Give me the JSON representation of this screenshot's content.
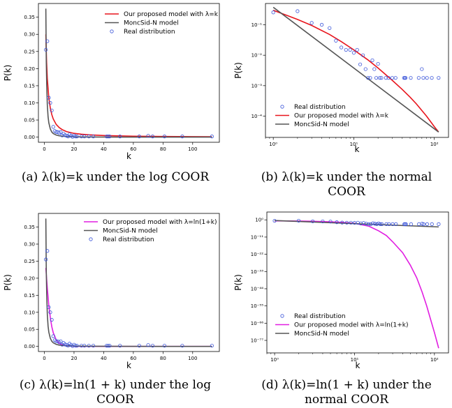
{
  "chart_data": [
    {
      "id": "a",
      "type": "line",
      "caption": "(a) λ(k)=k under the log COOR",
      "xlabel": "k",
      "ylabel": "P(k)",
      "xlim": [
        -4,
        118
      ],
      "ylim": [
        -0.015,
        0.39
      ],
      "xscale": "linear",
      "yscale": "linear",
      "xticks": [
        0,
        20,
        40,
        60,
        80,
        100
      ],
      "xtick_labels": [
        "0",
        "20",
        "40",
        "60",
        "80",
        "100"
      ],
      "yticks": [
        0.0,
        0.05,
        0.1,
        0.15,
        0.2,
        0.25,
        0.3,
        0.35
      ],
      "ytick_labels": [
        "0.00",
        "0.05",
        "0.10",
        "0.15",
        "0.20",
        "0.25",
        "0.30",
        "0.35"
      ],
      "legend_position": "top-right",
      "series": [
        {
          "name": "Our proposed model with λ=k",
          "kind": "line",
          "color": "#e8141c",
          "width": 1.6,
          "x": [
            1,
            1.5,
            2,
            3,
            4,
            5,
            6,
            8,
            10,
            12,
            15,
            20,
            25,
            30,
            40,
            50,
            60,
            80,
            100,
            113
          ],
          "y": [
            0.3,
            0.22,
            0.17,
            0.115,
            0.085,
            0.066,
            0.053,
            0.037,
            0.028,
            0.022,
            0.016,
            0.011,
            0.0085,
            0.0068,
            0.0048,
            0.0036,
            0.0028,
            0.0019,
            0.0014,
            0.0012
          ]
        },
        {
          "name": "MoncSid-N model",
          "kind": "line",
          "color": "#555555",
          "width": 1.6,
          "x": [
            1,
            1.3,
            1.6,
            2,
            2.5,
            3,
            4,
            5,
            6,
            8,
            10,
            15,
            20,
            30,
            50,
            80,
            113
          ],
          "y": [
            0.375,
            0.22,
            0.15,
            0.094,
            0.06,
            0.042,
            0.024,
            0.015,
            0.0105,
            0.006,
            0.0038,
            0.0017,
            0.0009,
            0.0004,
            0.00015,
            6e-05,
            3e-05
          ]
        },
        {
          "name": "Real distribution",
          "kind": "scatter",
          "color": "#3b55d9",
          "x": [
            1,
            2,
            3,
            4,
            5,
            6,
            7,
            8,
            9,
            10,
            11,
            12,
            13,
            14,
            15,
            16,
            17,
            18,
            19,
            20,
            21,
            22,
            25,
            27,
            30,
            33,
            42,
            43,
            44,
            51,
            64,
            70,
            73,
            81,
            93,
            113
          ],
          "y": [
            0.255,
            0.28,
            0.115,
            0.1,
            0.078,
            0.03,
            0.018,
            0.015,
            0.015,
            0.012,
            0.015,
            0.005,
            0.01,
            0.006,
            0.004,
            0.002,
            0.008,
            0.004,
            0.001,
            0.005,
            0.002,
            0.002,
            0.002,
            0.002,
            0.002,
            0.002,
            0.002,
            0.002,
            0.002,
            0.002,
            0.002,
            0.004,
            0.002,
            0.002,
            0.002,
            0.002
          ]
        }
      ]
    },
    {
      "id": "b",
      "type": "line",
      "caption": "(b) λ(k)=k under the normal COOR",
      "xlabel": "k",
      "ylabel": "P(k)",
      "xlim": [
        0.8,
        150
      ],
      "ylim": [
        2e-05,
        0.5
      ],
      "xscale": "log",
      "yscale": "log",
      "xticks": [
        1,
        10,
        100
      ],
      "xtick_labels": [
        "10⁰",
        "10¹",
        "10²"
      ],
      "yticks": [
        0.0001,
        0.001,
        0.01,
        0.1
      ],
      "ytick_labels": [
        "10⁻⁴",
        "10⁻³",
        "10⁻²",
        "10⁻¹"
      ],
      "legend_position": "bottom-left",
      "series": [
        {
          "name": "Real distribution",
          "kind": "scatter",
          "color": "#3b55d9",
          "x": [
            1,
            2,
            3,
            4,
            5,
            6,
            7,
            8,
            9,
            10,
            11,
            12,
            13,
            14,
            15,
            16,
            17,
            18,
            19,
            20,
            21,
            22,
            25,
            27,
            30,
            33,
            42,
            43,
            44,
            51,
            64,
            70,
            73,
            81,
            93,
            113
          ],
          "y": [
            0.255,
            0.28,
            0.115,
            0.1,
            0.078,
            0.03,
            0.018,
            0.015,
            0.015,
            0.012,
            0.015,
            0.005,
            0.01,
            0.0035,
            0.0018,
            0.0018,
            0.0068,
            0.0035,
            0.0018,
            0.0052,
            0.0018,
            0.0018,
            0.0018,
            0.0018,
            0.0018,
            0.0018,
            0.0018,
            0.0018,
            0.0018,
            0.0018,
            0.0018,
            0.0035,
            0.0018,
            0.0018,
            0.0018,
            0.0018
          ]
        },
        {
          "name": "Our proposed model with λ=k",
          "kind": "line",
          "color": "#e8141c",
          "width": 1.6,
          "x": [
            1,
            1.5,
            2,
            3,
            5,
            7,
            10,
            15,
            20,
            30,
            40,
            50,
            60,
            80,
            100,
            113
          ],
          "y": [
            0.3,
            0.2,
            0.15,
            0.095,
            0.048,
            0.028,
            0.015,
            0.007,
            0.0038,
            0.0015,
            0.00075,
            0.00042,
            0.00025,
            0.0001,
            4.5e-05,
            3e-05
          ]
        },
        {
          "name": "MoncSid-N model",
          "kind": "line",
          "color": "#555555",
          "width": 1.6,
          "x": [
            1,
            113
          ],
          "y": [
            0.375,
            3e-05
          ]
        }
      ]
    },
    {
      "id": "c",
      "type": "line",
      "caption": "(c) λ(k)=ln(1 + k) under the log COOR",
      "xlabel": "k",
      "ylabel": "P(k)",
      "xlim": [
        -4,
        118
      ],
      "ylim": [
        -0.015,
        0.39
      ],
      "xscale": "linear",
      "yscale": "linear",
      "xticks": [
        0,
        20,
        40,
        60,
        80,
        100
      ],
      "xtick_labels": [
        "0",
        "20",
        "40",
        "60",
        "80",
        "100"
      ],
      "yticks": [
        0.0,
        0.05,
        0.1,
        0.15,
        0.2,
        0.25,
        0.3,
        0.35
      ],
      "ytick_labels": [
        "0.00",
        "0.05",
        "0.10",
        "0.15",
        "0.20",
        "0.25",
        "0.30",
        "0.35"
      ],
      "legend_position": "top-right",
      "series": [
        {
          "name": "Our proposed model with λ=ln(1+k)",
          "kind": "line",
          "color": "#e11ee1",
          "width": 1.6,
          "x": [
            1,
            1.5,
            2,
            3,
            4,
            5,
            6,
            8,
            10,
            12,
            15,
            20,
            25,
            30,
            40,
            60,
            80,
            113
          ],
          "y": [
            0.23,
            0.2,
            0.17,
            0.12,
            0.085,
            0.058,
            0.04,
            0.019,
            0.009,
            0.0045,
            0.0018,
            0.0005,
            0.0002,
            0.0001,
            3e-05,
            1e-05,
            0.0,
            0.0
          ]
        },
        {
          "name": "MoncSid-N model",
          "kind": "line",
          "color": "#555555",
          "width": 1.6,
          "x": [
            1,
            1.3,
            1.6,
            2,
            2.5,
            3,
            4,
            5,
            6,
            8,
            10,
            15,
            20,
            30,
            50,
            80,
            113
          ],
          "y": [
            0.375,
            0.22,
            0.15,
            0.094,
            0.06,
            0.042,
            0.024,
            0.015,
            0.0105,
            0.006,
            0.0038,
            0.0017,
            0.0009,
            0.0004,
            0.00015,
            6e-05,
            3e-05
          ]
        },
        {
          "name": "Real distribution",
          "kind": "scatter",
          "color": "#3b55d9",
          "x": [
            1,
            2,
            3,
            4,
            5,
            6,
            7,
            8,
            9,
            10,
            11,
            12,
            13,
            14,
            15,
            16,
            17,
            18,
            19,
            20,
            21,
            22,
            25,
            27,
            30,
            33,
            42,
            43,
            44,
            51,
            64,
            70,
            73,
            81,
            93,
            113
          ],
          "y": [
            0.255,
            0.28,
            0.115,
            0.1,
            0.078,
            0.03,
            0.018,
            0.015,
            0.015,
            0.012,
            0.015,
            0.005,
            0.01,
            0.006,
            0.004,
            0.002,
            0.008,
            0.004,
            0.001,
            0.005,
            0.002,
            0.002,
            0.002,
            0.002,
            0.002,
            0.002,
            0.002,
            0.002,
            0.002,
            0.002,
            0.002,
            0.004,
            0.002,
            0.002,
            0.002,
            0.002
          ]
        }
      ]
    },
    {
      "id": "d",
      "type": "line",
      "caption": "(d) λ(k)=ln(1 + k) under the normal COOR",
      "xlabel": "k",
      "ylabel": "P(k)",
      "xlim": [
        0.8,
        150
      ],
      "ylim": [
        1e-85,
        100000.0
      ],
      "xscale": "log",
      "yscale": "log",
      "xticks": [
        1,
        10,
        100
      ],
      "xtick_labels": [
        "10⁰",
        "10¹",
        "10²"
      ],
      "yticks": [
        1e-77,
        1e-66,
        1e-55,
        1e-44,
        1e-33,
        1e-22,
        1e-11,
        1
      ],
      "ytick_labels": [
        "10⁻⁷⁷",
        "10⁻⁶⁶",
        "10⁻⁵⁵",
        "10⁻⁴⁴",
        "10⁻³³",
        "10⁻²²",
        "10⁻¹¹",
        "10⁰"
      ],
      "legend_position": "bottom-left",
      "series": [
        {
          "name": "Real distribution",
          "kind": "scatter",
          "color": "#3b55d9",
          "x": [
            1,
            2,
            3,
            4,
            5,
            6,
            7,
            8,
            9,
            10,
            11,
            12,
            13,
            14,
            15,
            16,
            17,
            18,
            19,
            20,
            21,
            22,
            25,
            27,
            30,
            33,
            42,
            43,
            44,
            51,
            64,
            70,
            73,
            81,
            93,
            113
          ],
          "y": [
            0.255,
            0.28,
            0.115,
            0.1,
            0.078,
            0.03,
            0.018,
            0.015,
            0.015,
            0.012,
            0.015,
            0.005,
            0.01,
            0.0035,
            0.0018,
            0.0018,
            0.0068,
            0.0035,
            0.0018,
            0.0052,
            0.0018,
            0.0018,
            0.0018,
            0.0018,
            0.0018,
            0.0018,
            0.0018,
            0.0018,
            0.0018,
            0.0018,
            0.0018,
            0.0035,
            0.0018,
            0.0018,
            0.0018,
            0.0018
          ]
        },
        {
          "name": "Our proposed model with λ=ln(1+k)",
          "kind": "line",
          "color": "#e11ee1",
          "width": 1.6,
          "x": [
            1,
            2,
            3,
            5,
            7,
            10,
            15,
            20,
            25,
            30,
            40,
            50,
            60,
            70,
            80,
            90,
            100,
            113
          ],
          "y": [
            0.23,
            0.17,
            0.12,
            0.058,
            0.025,
            0.006,
            0.0001,
            1e-07,
            1e-10,
            1e-14,
            1e-21,
            1e-29,
            1e-37,
            1e-46,
            1e-55,
            1e-64,
            1e-72,
            1e-82
          ]
        },
        {
          "name": "MoncSid-N model",
          "kind": "line",
          "color": "#555555",
          "width": 1.6,
          "x": [
            1,
            113
          ],
          "y": [
            0.375,
            3e-05
          ]
        }
      ]
    }
  ]
}
